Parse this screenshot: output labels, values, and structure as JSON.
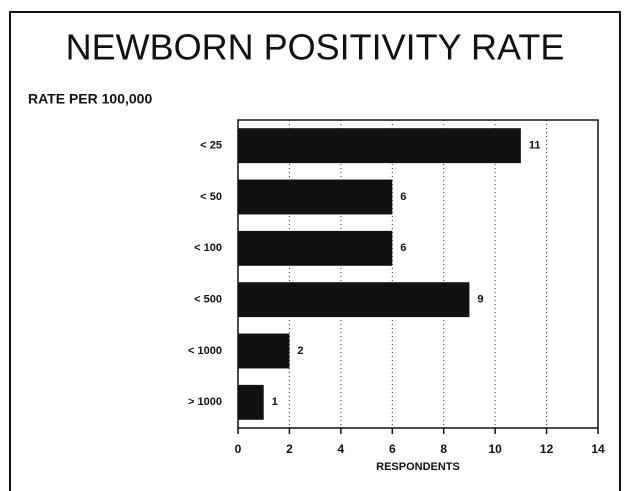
{
  "chart_data": {
    "type": "bar",
    "orientation": "horizontal",
    "title": "NEWBORN POSITIVITY RATE",
    "y_label": "RATE PER 100,000",
    "x_label": "RESPONDENTS",
    "categories": [
      "< 25",
      "< 50",
      "< 100",
      "< 500",
      "< 1000",
      "> 1000"
    ],
    "values": [
      11,
      6,
      6,
      9,
      2,
      1
    ],
    "color": "#111111",
    "xlim": [
      0,
      14
    ],
    "xticks": [
      0,
      2,
      4,
      6,
      8,
      10,
      12,
      14
    ],
    "grid": true
  }
}
